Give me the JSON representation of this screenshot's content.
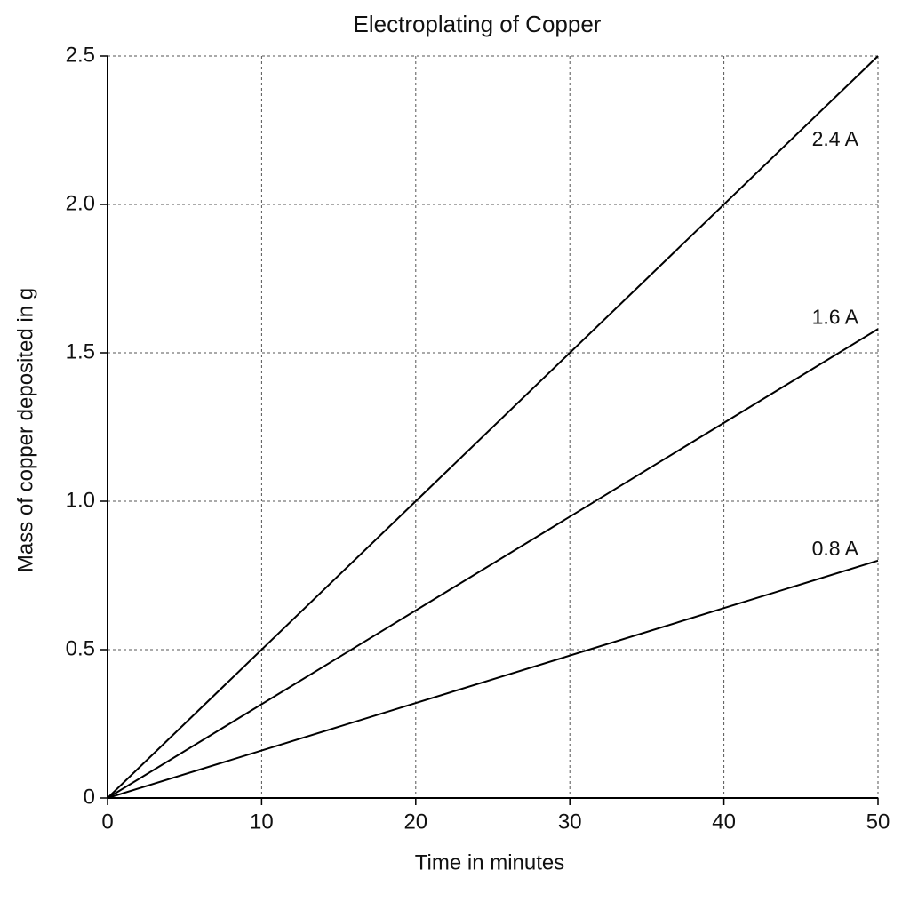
{
  "chart_data": {
    "type": "line",
    "title": "Electroplating of Copper",
    "x_label": "Time in minutes",
    "y_label": "Mass of copper deposited in g",
    "x": [
      0,
      50
    ],
    "series": [
      {
        "name": "2.4 A",
        "color": "#000000",
        "values": [
          0,
          2.5
        ]
      },
      {
        "name": "1.6 A",
        "color": "#000000",
        "values": [
          0,
          1.58
        ]
      },
      {
        "name": "0.8 A",
        "color": "#000000",
        "values": [
          0,
          0.8
        ]
      }
    ],
    "xlim": [
      0,
      50
    ],
    "xticks": [
      0,
      10,
      20,
      30,
      40,
      50
    ],
    "ylim": [
      0,
      2.5
    ],
    "yticks": [
      0,
      0.5,
      {
        "value": 1,
        "label": "1.0"
      },
      1.5,
      {
        "value": 2,
        "label": "2.0"
      },
      2.5
    ],
    "grid": true
  }
}
